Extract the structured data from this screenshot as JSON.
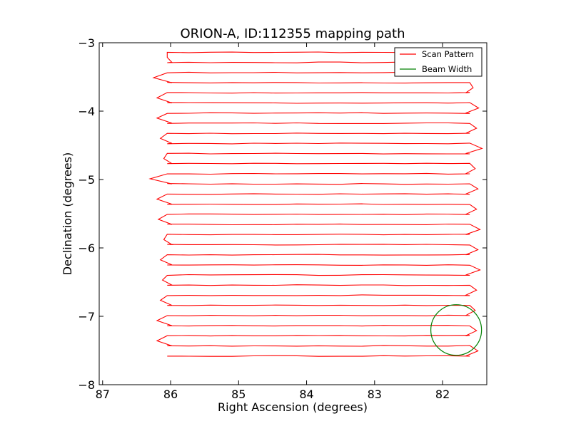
{
  "chart_data": {
    "type": "line",
    "title": "ORION-A, ID:112355 mapping path",
    "xlabel": "Right Ascension (degrees)",
    "ylabel": "Declination (degrees)",
    "xlim": [
      87.05,
      81.35
    ],
    "ylim": [
      -8,
      -3
    ],
    "x_ticks": [
      87,
      86,
      85,
      84,
      83,
      82
    ],
    "x_tick_labels": [
      "87",
      "86",
      "85",
      "84",
      "83",
      "82"
    ],
    "y_ticks": [
      -3,
      -4,
      -5,
      -6,
      -7,
      -8
    ],
    "y_tick_labels": [
      "−3",
      "−4",
      "−5",
      "−6",
      "−7",
      "−8"
    ],
    "grid": false,
    "legend_position": "top-right",
    "series": [
      {
        "name": "Scan Pattern",
        "color": "#ff0000",
        "scan": {
          "dec_start": -3.14,
          "dec_step": -0.148,
          "n_rows": 31,
          "ra_west": 81.6,
          "ra_east": 86.05,
          "turn_ra_east": [
            86.05,
            86.15,
            86.25,
            86.1,
            86.2,
            86.0,
            86.2,
            86.15,
            86.15,
            86.28,
            86.1,
            86.2,
            86.3,
            86.1,
            86.2,
            86.15,
            86.18,
            86.25,
            86.1,
            86.2,
            86.15,
            86.2,
            86.12,
            86.25,
            86.15,
            86.1,
            86.2,
            86.15,
            86.2,
            86.08,
            86.05
          ],
          "turn_ra_west": [
            81.45,
            81.52,
            81.48,
            81.55,
            81.5,
            81.47,
            81.42,
            81.5,
            81.48,
            81.42,
            81.5,
            81.52,
            81.45,
            81.48,
            81.4,
            81.5,
            81.55,
            81.45,
            81.52,
            81.48,
            81.5,
            81.45,
            81.55,
            81.5,
            81.48,
            81.52,
            81.45,
            81.5,
            81.55,
            81.48,
            81.5
          ]
        }
      },
      {
        "name": "Beam Width",
        "color": "#007f00",
        "circle": {
          "ra": 81.8,
          "dec": -7.2,
          "radius_dec": 0.37
        }
      }
    ]
  }
}
